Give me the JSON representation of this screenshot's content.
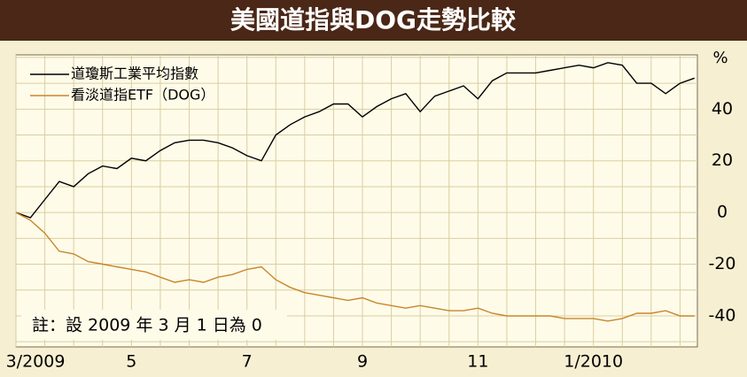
{
  "chart_data": {
    "type": "line",
    "title": "美國道指與DOG走勢比較",
    "y_label": "%",
    "annotation": "註：設 2009 年 3 月 1 日為 0",
    "x": [
      0,
      0.25,
      0.5,
      0.75,
      1,
      1.25,
      1.5,
      1.75,
      2,
      2.25,
      2.5,
      2.75,
      3,
      3.25,
      3.5,
      3.75,
      4,
      4.25,
      4.5,
      4.75,
      5,
      5.25,
      5.5,
      5.75,
      6,
      6.25,
      6.5,
      6.75,
      7,
      7.25,
      7.5,
      7.75,
      8,
      8.25,
      8.5,
      8.75,
      9,
      9.25,
      9.5,
      9.75,
      10,
      10.25,
      10.5,
      10.75,
      11,
      11.25,
      11.5,
      11.75
    ],
    "xlim": [
      0,
      11.8
    ],
    "xticks": [
      {
        "value": 0,
        "label": "3/2009"
      },
      {
        "value": 2,
        "label": "5"
      },
      {
        "value": 4,
        "label": "7"
      },
      {
        "value": 6,
        "label": "9"
      },
      {
        "value": 8,
        "label": "11"
      },
      {
        "value": 10,
        "label": "1/2010"
      }
    ],
    "ylim": [
      -52,
      61
    ],
    "yticks": [
      -40,
      -20,
      0,
      20,
      40
    ],
    "grid": true,
    "legend": "upper left",
    "series": [
      {
        "name": "道瓊斯工業平均指數",
        "color": "#000000",
        "values": [
          0,
          -2,
          5,
          12,
          10,
          15,
          18,
          17,
          21,
          20,
          24,
          27,
          28,
          28,
          27,
          25,
          22,
          20,
          30,
          34,
          37,
          39,
          42,
          42,
          37,
          41,
          44,
          46,
          39,
          45,
          47,
          49,
          44,
          51,
          54,
          54,
          54,
          55,
          56,
          57,
          56,
          58,
          57,
          50,
          50,
          46,
          50,
          52
        ]
      },
      {
        "name": "看淡道指ETF（DOG）",
        "color": "#c8862a",
        "values": [
          0,
          -3,
          -8,
          -15,
          -16,
          -19,
          -20,
          -21,
          -22,
          -23,
          -25,
          -27,
          -26,
          -27,
          -25,
          -24,
          -22,
          -21,
          -26,
          -29,
          -31,
          -32,
          -33,
          -34,
          -33,
          -35,
          -36,
          -37,
          -36,
          -37,
          -38,
          -38,
          -37,
          -39,
          -40,
          -40,
          -40,
          -40,
          -41,
          -41,
          -41,
          -42,
          -41,
          -39,
          -39,
          -38,
          -40,
          -40
        ]
      }
    ]
  }
}
